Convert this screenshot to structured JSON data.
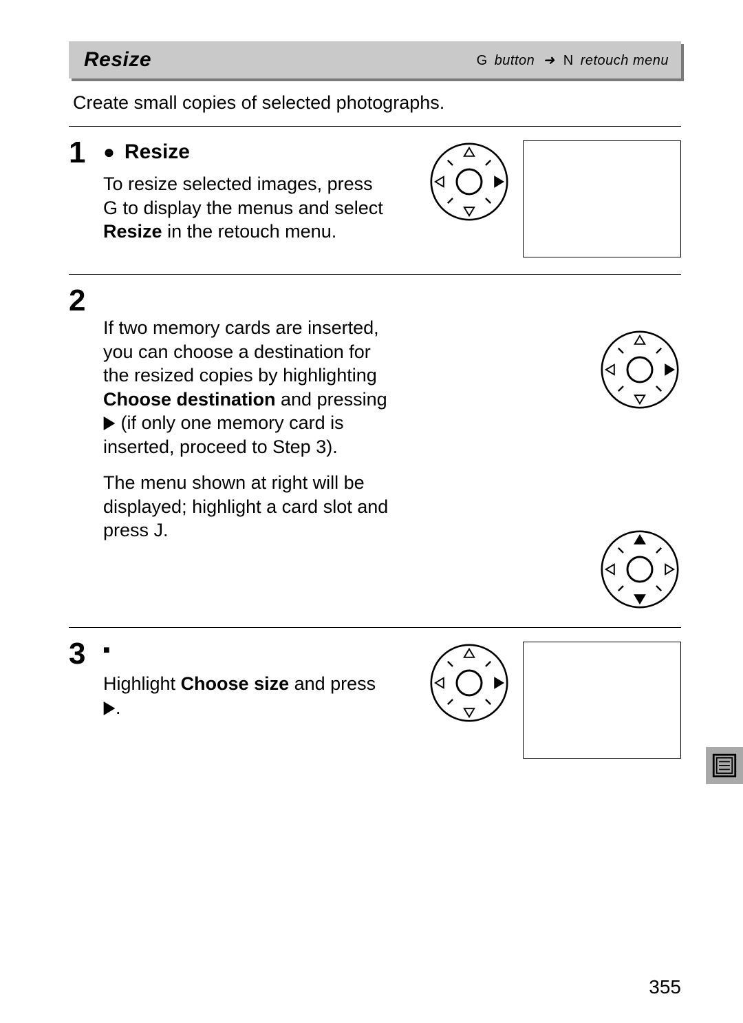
{
  "header": {
    "title": "Resize",
    "button_glyph": "G",
    "button_text": "button",
    "arrow": "➜",
    "menu_glyph": "N",
    "menu_text": "retouch menu"
  },
  "intro": "Create small copies of selected photographs.",
  "step1": {
    "number": "1",
    "title_prefix": "●",
    "title": "Resize",
    "text_a": "To resize selected images, press ",
    "glyph": "G",
    "text_b": " to display the menus and select ",
    "bold": "Resize",
    "text_c": " in the retouch menu.",
    "selector": {
      "highlight_right": true,
      "highlight_up": false,
      "highlight_down": false
    }
  },
  "step2": {
    "number": "2",
    "p1_a": "If two memory cards are inserted, you can choose a destination for the resized copies by highlighting ",
    "p1_bold": "Choose destination",
    "p1_b": " and pressing ",
    "p1_c": " (if only one memory card is inserted, proceed to Step 3).",
    "p2_a": "The menu shown at right will be displayed; highlight a card slot and press ",
    "p2_glyph": "J",
    "p2_b": ".",
    "selector_top": {
      "highlight_right": true,
      "highlight_up": false,
      "highlight_down": false
    },
    "selector_bottom": {
      "highlight_right": false,
      "highlight_up": true,
      "highlight_down": true
    }
  },
  "step3": {
    "number": "3",
    "title_prefix": "■",
    "p_a": "Highlight ",
    "p_bold": "Choose size",
    "p_b": " and press ",
    "p_c": ".",
    "selector": {
      "highlight_right": true,
      "highlight_up": false,
      "highlight_down": false
    }
  },
  "page_number": "355",
  "colors": {
    "header_bg": "#c9c9c9",
    "header_shadow": "#7a7a7a",
    "side_tab_bg": "#a9a9a9",
    "rule": "#000000"
  }
}
